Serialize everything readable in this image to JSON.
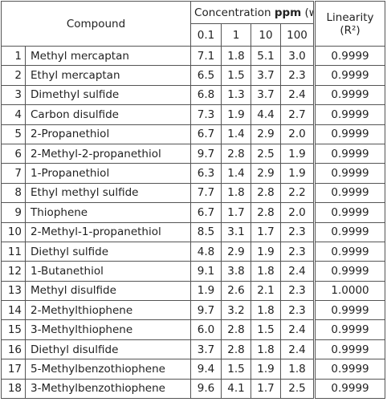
{
  "table": {
    "header": {
      "compound": "Compound",
      "concentration": "Concentration",
      "unit_bold": "ppm",
      "unit_rest": "(w/w)",
      "linearity": "Linearity",
      "linearity_unit": "(R²)",
      "levels": [
        "0.1",
        "1",
        "10",
        "100"
      ]
    },
    "rows": [
      [
        "1",
        "Methyl mercaptan",
        "7.1",
        "1.8",
        "5.1",
        "3.0",
        "0.9999"
      ],
      [
        "2",
        "Ethyl mercaptan",
        "6.5",
        "1.5",
        "3.7",
        "2.3",
        "0.9999"
      ],
      [
        "3",
        "Dimethyl sulfide",
        "6.8",
        "1.3",
        "3.7",
        "2.4",
        "0.9999"
      ],
      [
        "4",
        "Carbon disulfide",
        "7.3",
        "1.9",
        "4.4",
        "2.7",
        "0.9999"
      ],
      [
        "5",
        "2-Propanethiol",
        "6.7",
        "1.4",
        "2.9",
        "2.0",
        "0.9999"
      ],
      [
        "6",
        "2-Methyl-2-propanethiol",
        "9.7",
        "2.8",
        "2.5",
        "1.9",
        "0.9999"
      ],
      [
        "7",
        "1-Propanethiol",
        "6.3",
        "1.4",
        "2.9",
        "1.9",
        "0.9999"
      ],
      [
        "8",
        "Ethyl methyl sulfide",
        "7.7",
        "1.8",
        "2.8",
        "2.2",
        "0.9999"
      ],
      [
        "9",
        "Thiophene",
        "6.7",
        "1.7",
        "2.8",
        "2.0",
        "0.9999"
      ],
      [
        "10",
        "2-Methyl-1-propanethiol",
        "8.5",
        "3.1",
        "1.7",
        "2.3",
        "0.9999"
      ],
      [
        "11",
        "Diethyl sulfide",
        "4.8",
        "2.9",
        "1.9",
        "2.3",
        "0.9999"
      ],
      [
        "12",
        "1-Butanethiol",
        "9.1",
        "3.8",
        "1.8",
        "2.4",
        "0.9999"
      ],
      [
        "13",
        "Methyl disulfide",
        "1.9",
        "2.6",
        "2.1",
        "2.3",
        "1.0000"
      ],
      [
        "14",
        "2-Methylthiophene",
        "9.7",
        "3.2",
        "1.8",
        "2.3",
        "0.9999"
      ],
      [
        "15",
        "3-Methylthiophene",
        "6.0",
        "2.8",
        "1.5",
        "2.4",
        "0.9999"
      ],
      [
        "16",
        "Diethyl disulfide",
        "3.7",
        "2.8",
        "1.8",
        "2.4",
        "0.9999"
      ],
      [
        "17",
        "5-Methylbenzothiophene",
        "9.4",
        "1.5",
        "1.9",
        "1.8",
        "0.9999"
      ],
      [
        "18",
        "3-Methylbenzothiophene",
        "9.6",
        "4.1",
        "1.7",
        "2.5",
        "0.9999"
      ]
    ]
  }
}
